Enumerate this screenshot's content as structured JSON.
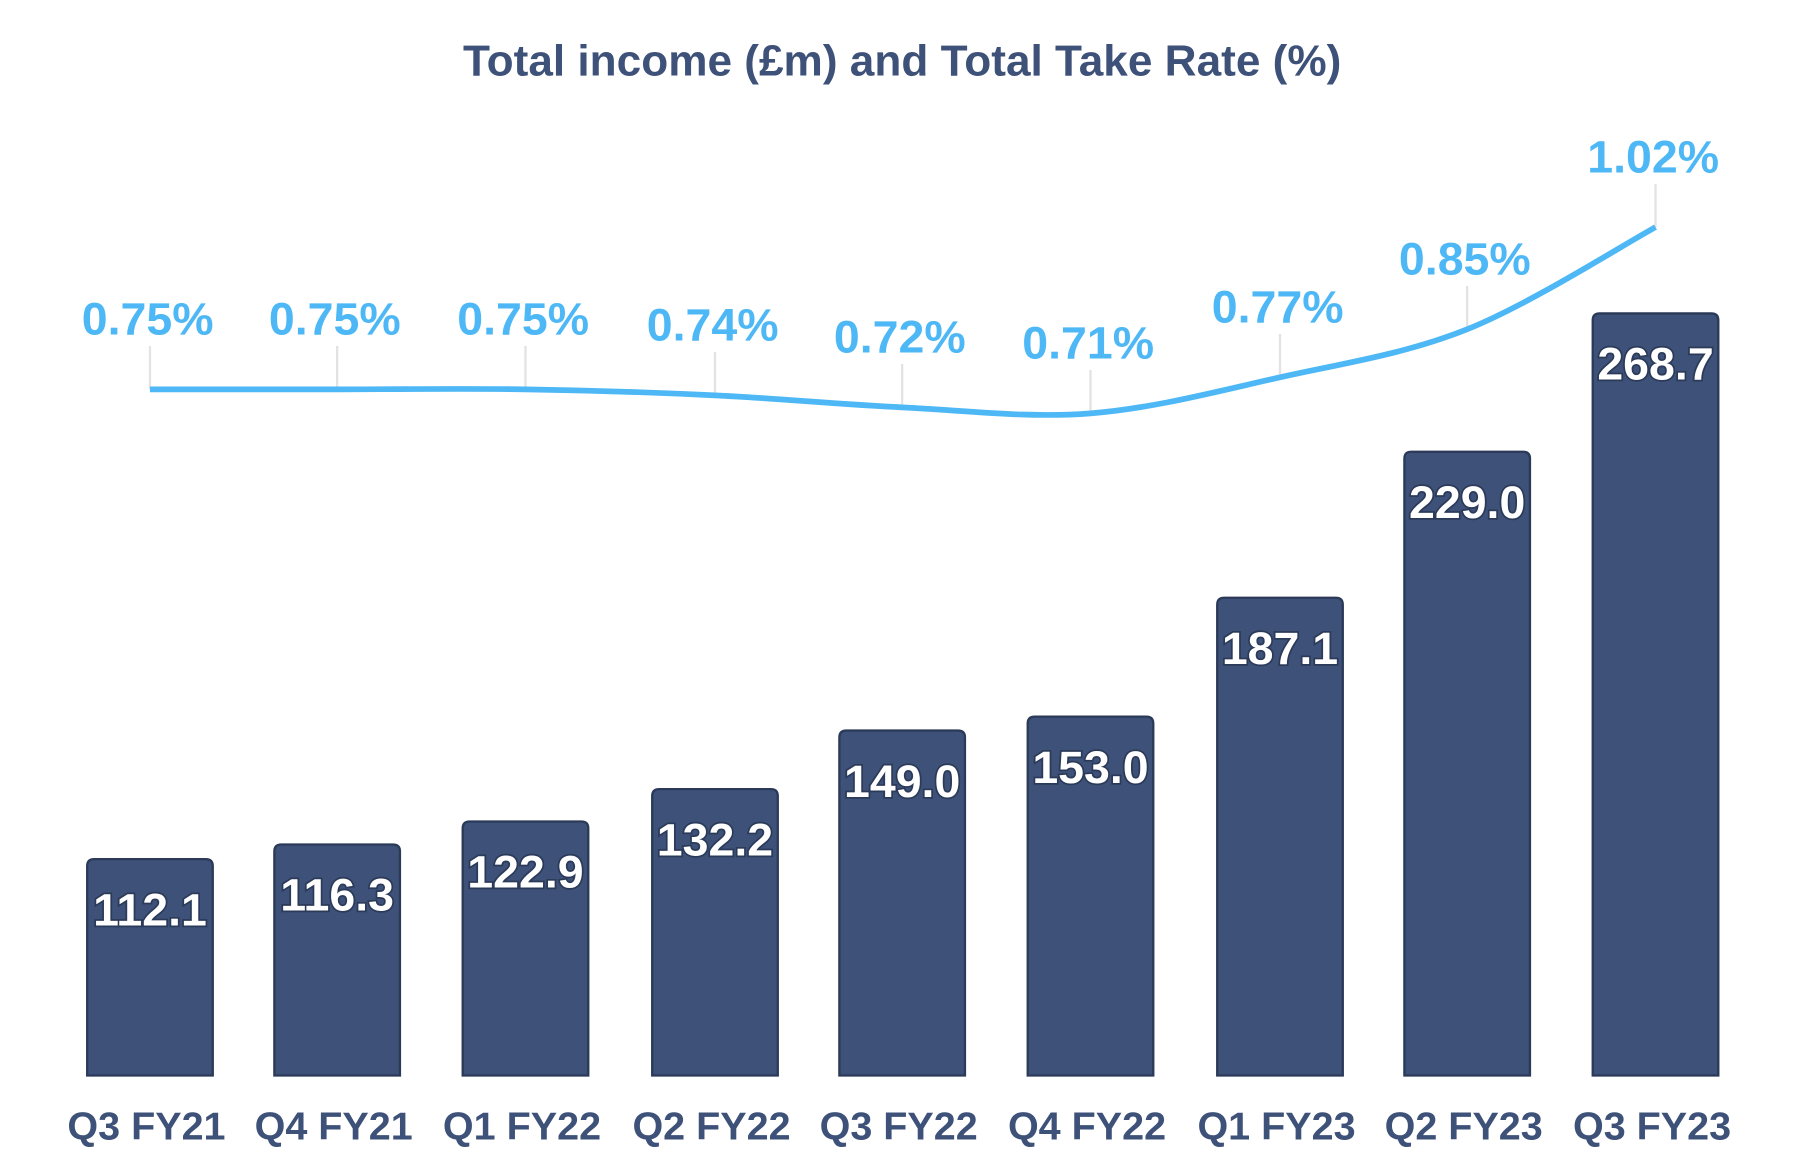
{
  "chart_data": {
    "type": "bar+line",
    "title": "Total income (£m) and Total Take Rate (%)",
    "categories": [
      "Q3 FY21",
      "Q4 FY21",
      "Q1 FY22",
      "Q2 FY22",
      "Q3 FY22",
      "Q4 FY22",
      "Q1 FY23",
      "Q2 FY23",
      "Q3 FY23"
    ],
    "series": [
      {
        "type": "bar",
        "values": [
          112.1,
          116.3,
          122.9,
          132.2,
          149.0,
          153.0,
          187.1,
          229.0,
          268.7
        ],
        "labels": [
          "112.1",
          "116.3",
          "122.9",
          "132.2",
          "149.0",
          "153.0",
          "187.1",
          "229.0",
          "268.7"
        ],
        "color": "#3d5179"
      },
      {
        "type": "line",
        "values": [
          0.75,
          0.75,
          0.75,
          0.74,
          0.72,
          0.71,
          0.77,
          0.85,
          1.02
        ],
        "labels": [
          "0.75%",
          "0.75%",
          "0.75%",
          "0.74%",
          "0.72%",
          "0.71%",
          "0.77%",
          "0.85%",
          "1.02%"
        ],
        "color": "#4db8f5",
        "smooth": true
      }
    ],
    "bar_axis_min": 50,
    "grid": false,
    "legend": "none"
  }
}
